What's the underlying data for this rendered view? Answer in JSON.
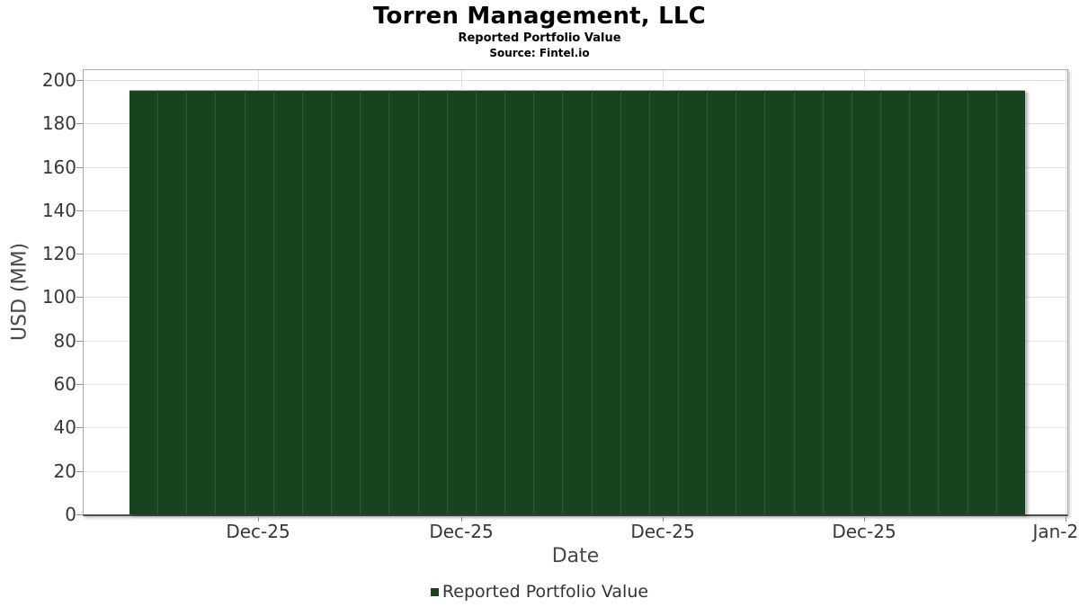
{
  "chart_data": {
    "type": "bar",
    "title": "Torren Management, LLC",
    "subtitle": "Reported Portfolio Value",
    "source": "Source: Fintel.io",
    "xlabel": "Date",
    "ylabel": "USD (MM)",
    "ylim": [
      0,
      204.5
    ],
    "yticks": [
      0,
      20,
      40,
      60,
      80,
      100,
      120,
      140,
      160,
      180,
      200
    ],
    "xticklabels": [
      "Dec-25",
      "Dec-25",
      "Dec-25",
      "Dec-25",
      "Jan-2"
    ],
    "grid": true,
    "legend_position": "bottom",
    "series": [
      {
        "name": "Reported Portfolio Value",
        "color": "#17431E",
        "values": [
          195.4,
          195.4,
          195.4,
          195.4,
          195.4,
          195.4,
          195.4,
          195.4,
          195.4,
          195.4,
          195.4,
          195.4,
          195.4,
          195.4,
          195.4,
          195.4,
          195.4,
          195.4,
          195.4,
          195.4,
          195.4,
          195.4,
          195.4,
          195.4,
          195.4,
          195.4,
          195.4,
          195.4,
          195.4,
          195.4,
          195.4
        ]
      }
    ]
  },
  "colors": {
    "background": "#FFFFFF",
    "bar": "#17431E",
    "bar_edge": "#2E5635",
    "bar_top_edge": "#AFB9AF",
    "grid": "#E2E2E2",
    "frame": "#ABABAB",
    "axis_bottom": "#4F4F4F",
    "tick_mark": "#8F8F8F",
    "tick_label": "#383838",
    "axis_label": "#474747",
    "title": "#000000",
    "legend_text": "#333333"
  }
}
